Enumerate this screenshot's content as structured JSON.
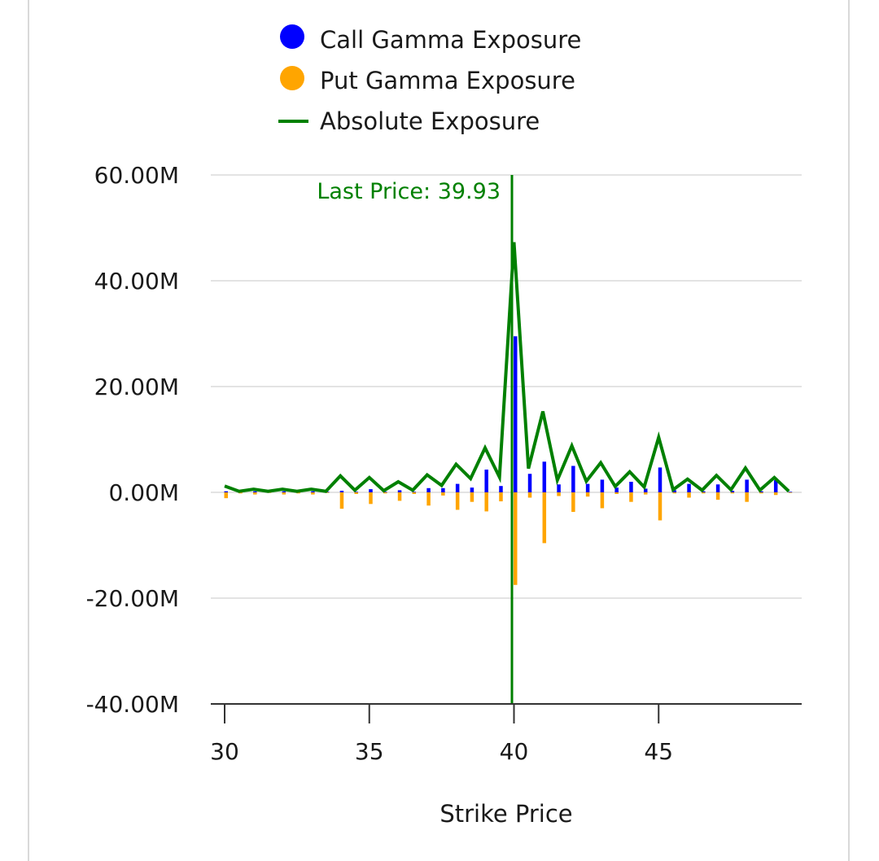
{
  "chart_data": {
    "type": "bar",
    "title": "",
    "xlabel": "Strike Price",
    "ylabel": "",
    "xlim": [
      30,
      49.5
    ],
    "ylim": [
      -40,
      60
    ],
    "x_ticks": [
      30,
      35,
      40,
      45
    ],
    "y_ticks": [
      60,
      40,
      20,
      0,
      -20,
      -40
    ],
    "y_tick_labels": [
      "60.00M",
      "40.00M",
      "20.00M",
      "0.00M",
      "-20.00M",
      "-40.00M"
    ],
    "grid": true,
    "legend_position": "top",
    "legend": [
      {
        "name": "Call Gamma Exposure",
        "color": "#0000ff",
        "marker": "dot"
      },
      {
        "name": "Put Gamma Exposure",
        "color": "#ffa500",
        "marker": "dot"
      },
      {
        "name": "Absolute Exposure",
        "color": "#008000",
        "marker": "line"
      }
    ],
    "annotation": {
      "label": "Last Price: 39.93",
      "x": 39.93,
      "color": "#008000"
    },
    "x": [
      30,
      30.5,
      31,
      31.5,
      32,
      32.5,
      33,
      33.5,
      34,
      34.5,
      35,
      35.5,
      36,
      36.5,
      37,
      37.5,
      38,
      38.5,
      39,
      39.5,
      40,
      40.5,
      41,
      41.5,
      42,
      42.5,
      43,
      43.5,
      44,
      44.5,
      45,
      45.5,
      46,
      46.5,
      47,
      47.5,
      48,
      48.5,
      49,
      49.5
    ],
    "series": [
      {
        "name": "Call Gamma Exposure",
        "color": "#0000ff",
        "values": [
          0.2,
          0.1,
          0.2,
          0.1,
          0.2,
          0.1,
          0.2,
          0.1,
          0.3,
          0.1,
          0.6,
          0.1,
          0.4,
          0.1,
          0.8,
          0.8,
          1.6,
          0.9,
          4.3,
          1.2,
          29.5,
          3.5,
          5.8,
          1.5,
          5.0,
          1.6,
          2.4,
          0.9,
          2.0,
          0.7,
          4.7,
          0.4,
          1.6,
          0.2,
          1.5,
          0.3,
          2.4,
          0.2,
          2.3,
          0.1
        ]
      },
      {
        "name": "Put Gamma Exposure",
        "color": "#ffa500",
        "values": [
          -1.1,
          -0.2,
          -0.4,
          -0.1,
          -0.4,
          -0.2,
          -0.4,
          -0.1,
          -3.1,
          -0.3,
          -2.2,
          -0.2,
          -1.6,
          -0.3,
          -2.5,
          -0.6,
          -3.3,
          -1.8,
          -3.6,
          -1.7,
          -17.5,
          -1.0,
          -9.6,
          -0.7,
          -3.7,
          -0.8,
          -3.0,
          -0.3,
          -1.8,
          -0.4,
          -5.3,
          -0.2,
          -1.0,
          -0.2,
          -1.4,
          -0.2,
          -1.8,
          -0.2,
          -0.5,
          -0.1
        ]
      },
      {
        "name": "Absolute Exposure",
        "color": "#008000",
        "values": [
          1.2,
          0.2,
          0.6,
          0.2,
          0.6,
          0.2,
          0.6,
          0.2,
          3.1,
          0.4,
          2.8,
          0.3,
          2.0,
          0.4,
          3.3,
          1.3,
          5.3,
          2.6,
          8.4,
          2.9,
          47.3,
          4.5,
          15.3,
          2.3,
          8.8,
          2.1,
          5.6,
          1.1,
          3.9,
          1.0,
          10.4,
          0.5,
          2.5,
          0.4,
          3.2,
          0.5,
          4.6,
          0.4,
          2.8,
          0.2
        ]
      }
    ]
  }
}
